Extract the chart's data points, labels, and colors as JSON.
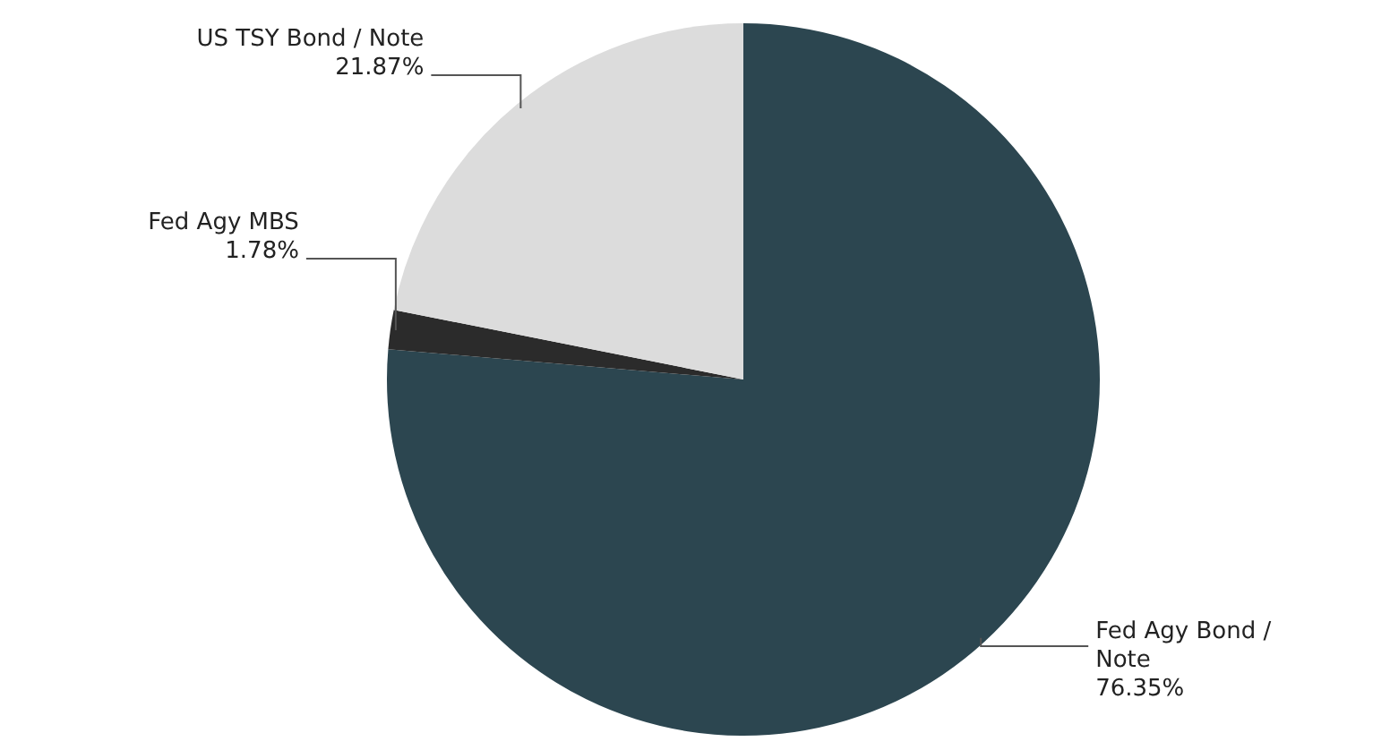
{
  "chart_data": {
    "type": "pie",
    "categories": [
      "Fed Agy Bond / Note",
      "Fed Agy MBS",
      "US TSY Bond / Note"
    ],
    "values": [
      76.35,
      1.78,
      21.87
    ],
    "value_labels": [
      "76.35%",
      "1.78%",
      "21.87%"
    ],
    "colors": [
      "#2c4650",
      "#2b2b2b",
      "#dcdcdc"
    ],
    "legend": false
  }
}
